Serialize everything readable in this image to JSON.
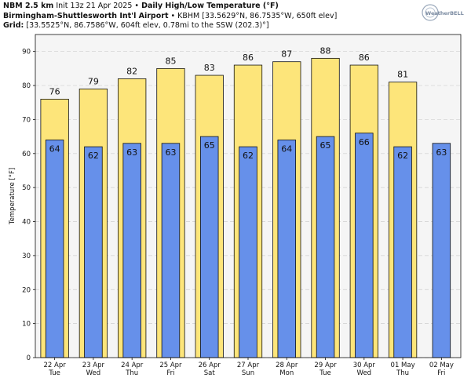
{
  "header": {
    "line1_bold": "NBM 2.5 km",
    "line1_init": "Init 13z 21 Apr 2025",
    "line1_sep": "•",
    "line1_title": "Daily High/Low Temperature (°F)",
    "line2_bold": "Birmingham-Shuttlesworth Int'l Airport",
    "line2_sep": "•",
    "line2_rest": "KBHM [33.5629°N, 86.7535°W, 650ft elev]",
    "line3_bold": "Grid:",
    "line3_rest": "[33.5525°N, 86.7586°W, 604ft elev, 0.78mi to the SSW (202.3)°]"
  },
  "logo": {
    "text": "WeatherBELL"
  },
  "colors": {
    "high_fill": "#fde57a",
    "low_fill": "#6690ea",
    "plot_bg": "#f5f5f5",
    "grid": "#cfcfcf",
    "bar_edge": "#111111"
  },
  "chart_data": {
    "type": "bar",
    "ylabel": "Temperature [°F]",
    "ylim": [
      0,
      95
    ],
    "yticks": [
      0,
      10,
      20,
      30,
      40,
      50,
      60,
      70,
      80,
      90
    ],
    "grid": true,
    "categories": [
      {
        "date": "22 Apr",
        "day": "Tue"
      },
      {
        "date": "23 Apr",
        "day": "Wed"
      },
      {
        "date": "24 Apr",
        "day": "Thu"
      },
      {
        "date": "25 Apr",
        "day": "Fri"
      },
      {
        "date": "26 Apr",
        "day": "Sat"
      },
      {
        "date": "27 Apr",
        "day": "Sun"
      },
      {
        "date": "28 Apr",
        "day": "Mon"
      },
      {
        "date": "29 Apr",
        "day": "Tue"
      },
      {
        "date": "30 Apr",
        "day": "Wed"
      },
      {
        "date": "01 May",
        "day": "Thu"
      },
      {
        "date": "02 May",
        "day": "Fri"
      }
    ],
    "series": [
      {
        "values": [
          76,
          79,
          82,
          85,
          83,
          86,
          87,
          88,
          86,
          81,
          null
        ]
      },
      {
        "values": [
          64,
          62,
          63,
          63,
          65,
          62,
          64,
          65,
          66,
          62,
          63
        ]
      }
    ]
  }
}
